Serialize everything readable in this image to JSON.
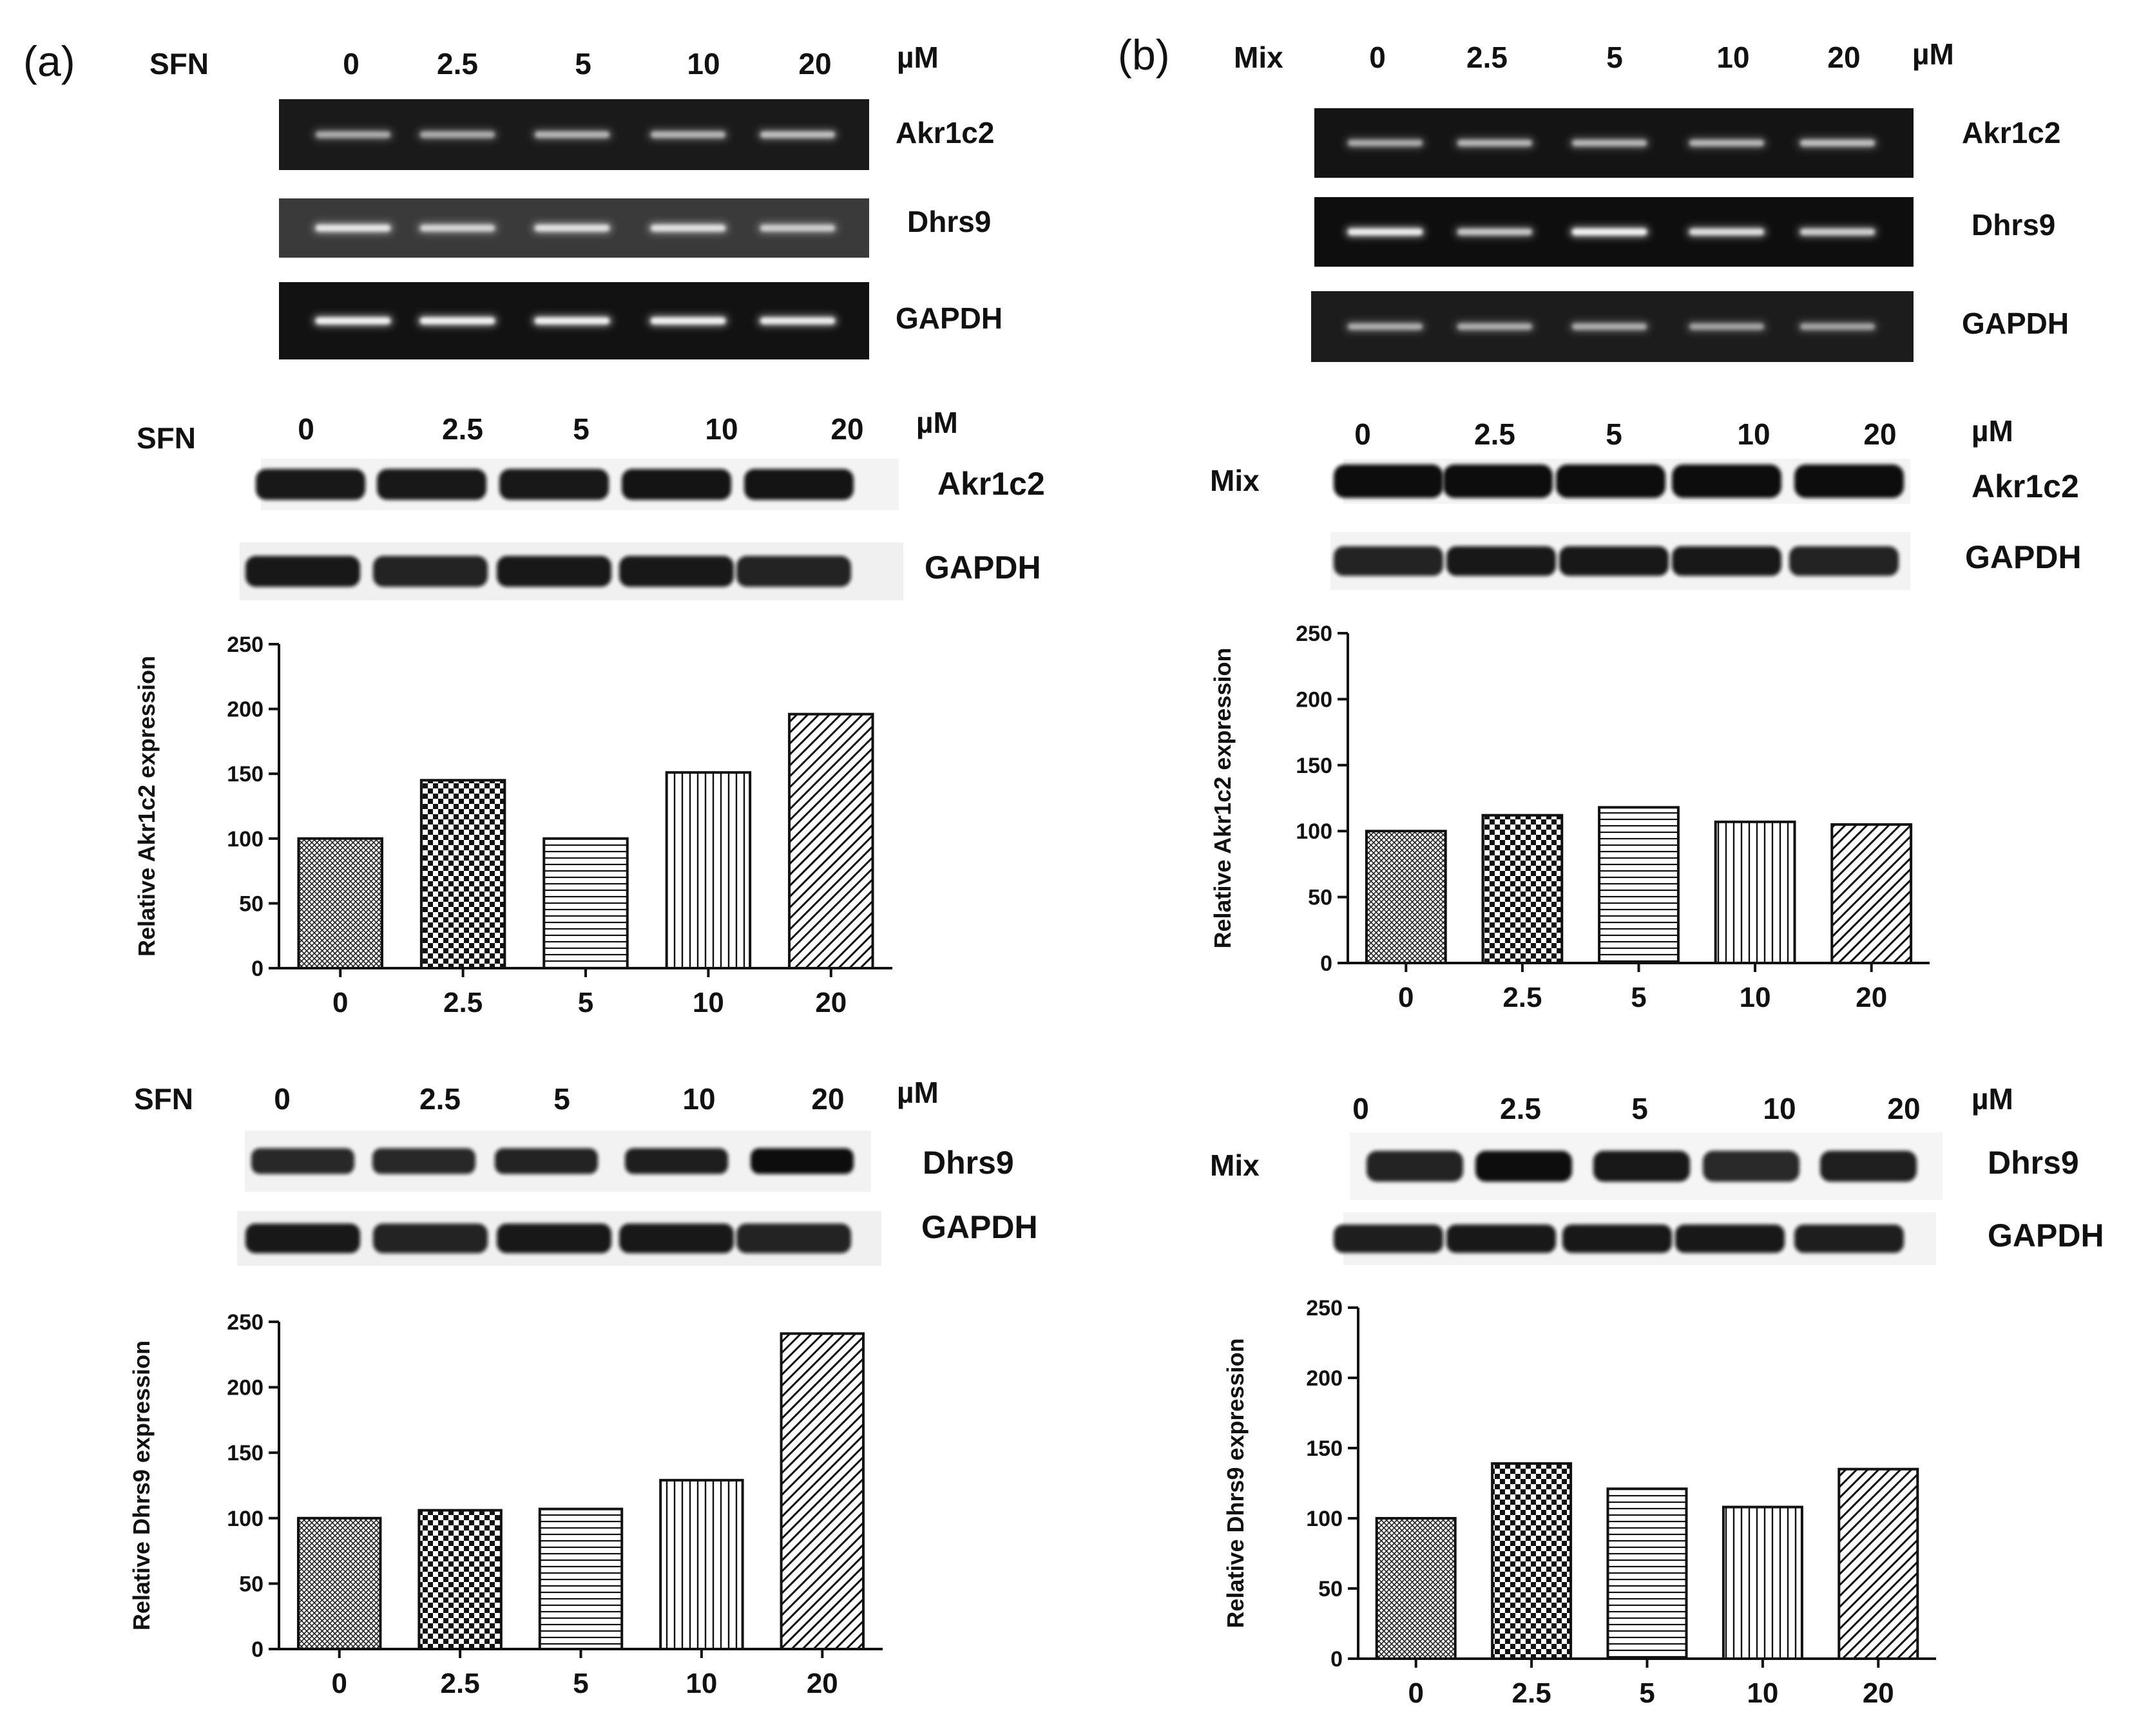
{
  "panels": [
    {
      "label": "(a)",
      "treatment": "SFN",
      "unit": "µM",
      "doses": [
        "0",
        "2.5",
        "5",
        "10",
        "20"
      ],
      "pcr_bands": [
        "Akr1c2",
        "Dhrs9",
        "GAPDH"
      ],
      "western_akr": {
        "treatment": "SFN",
        "bands": [
          "Akr1c2",
          "GAPDH"
        ]
      },
      "western_dhrs": {
        "treatment": "SFN",
        "bands": [
          "Dhrs9",
          "GAPDH"
        ]
      }
    },
    {
      "label": "(b)",
      "treatment": "Mix",
      "unit": "µM",
      "doses": [
        "0",
        "2.5",
        "5",
        "10",
        "20"
      ],
      "pcr_bands": [
        "Akr1c2",
        "Dhrs9",
        "GAPDH"
      ],
      "western_akr": {
        "treatment": "Mix",
        "bands": [
          "Akr1c2",
          "GAPDH"
        ]
      },
      "western_dhrs": {
        "treatment": "Mix",
        "bands": [
          "Dhrs9",
          "GAPDH"
        ]
      }
    }
  ],
  "chart_data": [
    {
      "type": "bar",
      "panel": "(a)",
      "categories": [
        "0",
        "2.5",
        "5",
        "10",
        "20"
      ],
      "values": [
        100,
        145,
        100,
        151,
        196
      ],
      "ylabel": "Relative Akr1c2 expression",
      "ylim": [
        0,
        250
      ],
      "yticks": [
        0,
        50,
        100,
        150,
        200,
        250
      ],
      "patterns": [
        "dense-crosshatch",
        "checker",
        "horizontal",
        "vertical",
        "diagonal"
      ]
    },
    {
      "type": "bar",
      "panel": "(a)",
      "categories": [
        "0",
        "2.5",
        "5",
        "10",
        "20"
      ],
      "values": [
        100,
        106,
        107,
        129,
        241
      ],
      "ylabel": "Relative Dhrs9 expression",
      "ylim": [
        0,
        250
      ],
      "yticks": [
        0,
        50,
        100,
        150,
        200,
        250
      ],
      "patterns": [
        "dense-crosshatch",
        "checker",
        "horizontal",
        "vertical",
        "diagonal"
      ]
    },
    {
      "type": "bar",
      "panel": "(b)",
      "categories": [
        "0",
        "2.5",
        "5",
        "10",
        "20"
      ],
      "values": [
        100,
        112,
        118,
        107,
        105
      ],
      "ylabel": "Relative Akr1c2 expression",
      "ylim": [
        0,
        250
      ],
      "yticks": [
        0,
        50,
        100,
        150,
        200,
        250
      ],
      "patterns": [
        "dense-crosshatch",
        "checker",
        "horizontal",
        "vertical",
        "diagonal"
      ]
    },
    {
      "type": "bar",
      "panel": "(b)",
      "categories": [
        "0",
        "2.5",
        "5",
        "10",
        "20"
      ],
      "values": [
        100,
        139,
        121,
        108,
        135
      ],
      "ylabel": "Relative Dhrs9  expression",
      "ylim": [
        0,
        250
      ],
      "yticks": [
        0,
        50,
        100,
        150,
        200,
        250
      ],
      "patterns": [
        "dense-crosshatch",
        "checker",
        "horizontal",
        "vertical",
        "diagonal"
      ]
    }
  ]
}
